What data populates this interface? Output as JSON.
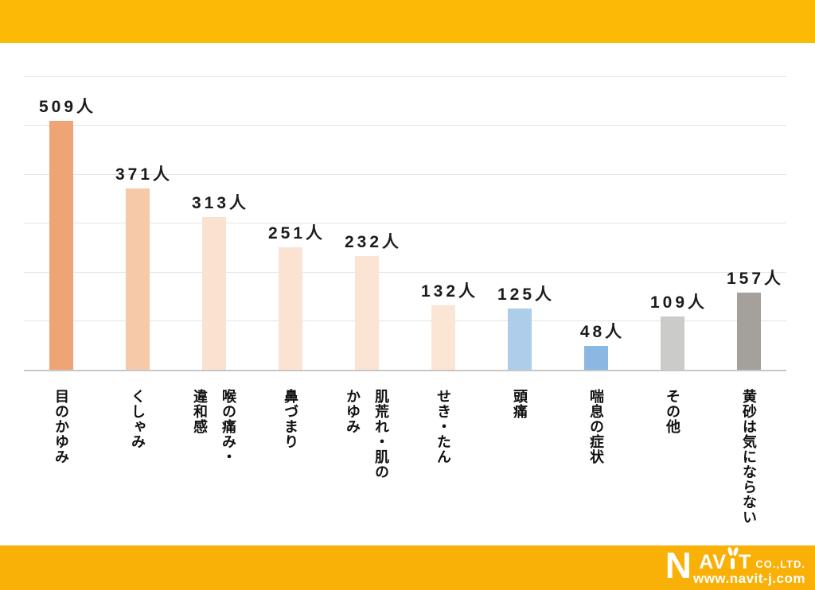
{
  "page": {
    "background": "#ffffff",
    "top_banner_color": "#fcba06",
    "bottom_banner_color": "#f9b007"
  },
  "chart_data": {
    "type": "bar",
    "title": "",
    "unit": "人",
    "categories": [
      "目のかゆみ",
      "くしゃみ",
      "喉の痛み・違和感",
      "鼻づまり",
      "肌荒れ・肌のかゆみ",
      "せき・たん",
      "頭痛",
      "喘息の症状",
      "その他",
      "黄砂は気にならない"
    ],
    "display_categories": [
      "目のかゆみ",
      "くしゃみ",
      "喉の痛み・\n違和感",
      "鼻づまり",
      "肌荒れ・肌の\nかゆみ",
      "せき・たん",
      "頭痛",
      "喘息の症状",
      "その他",
      "黄砂は気にならない"
    ],
    "values": [
      509,
      371,
      313,
      251,
      232,
      132,
      125,
      48,
      109,
      157
    ],
    "value_labels": [
      "509人",
      "371人",
      "313人",
      "251人",
      "232人",
      "132人",
      "125人",
      "48人",
      "109人",
      "157人"
    ],
    "bar_colors": [
      "#efa476",
      "#f6c9a8",
      "#fae2d0",
      "#fae3d2",
      "#fbe4d3",
      "#fbe6d5",
      "#aecde9",
      "#8bb8e2",
      "#cbcbc9",
      "#a5a09c"
    ],
    "ylim": [
      0,
      600
    ],
    "gridline_interval": 100,
    "grid": true,
    "legend": false,
    "xlabel": "",
    "ylabel": ""
  },
  "footer": {
    "logo_name": "NAVIT",
    "logo_n": "N",
    "logo_av": "AV",
    "logo_t": "T",
    "logo_co": "CO.,LTD.",
    "logo_url": "www.navit-j.com"
  }
}
